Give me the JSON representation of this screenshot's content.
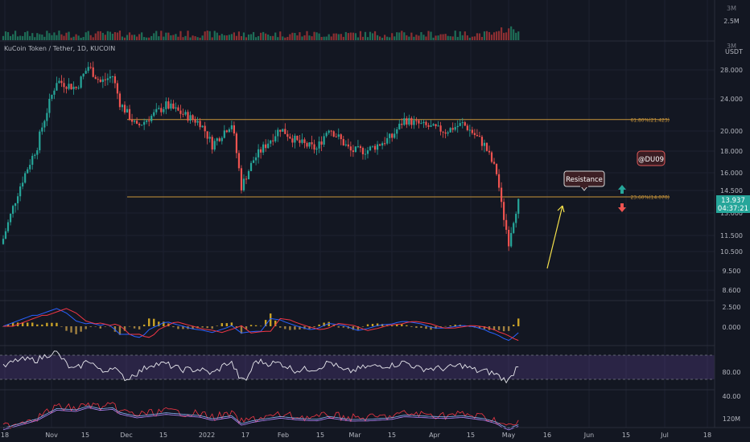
{
  "chart_data": {
    "type": "candlestick",
    "title": "KuCoin Token / Tether, 1D, KUCOIN",
    "currency": "USDT",
    "ylim": [
      8.6,
      30.0
    ],
    "y_ticks": [
      "28.000",
      "24.000",
      "20.000",
      "18.000",
      "16.000",
      "14.500",
      "13.000",
      "11.500",
      "10.500",
      "9.500",
      "8.600"
    ],
    "x_ticks": [
      "18",
      "Nov",
      "15",
      "Dec",
      "15",
      "2022",
      "17",
      "Feb",
      "15",
      "Mar",
      "15",
      "Apr",
      "15",
      "May",
      "16",
      "Jun",
      "15",
      "Jul",
      "18"
    ],
    "fib_levels": [
      {
        "label": "61.80%(21.423)",
        "value": 21.423
      },
      {
        "label": "23.60%(14.070)",
        "value": 14.07
      }
    ],
    "last_price": "13.937",
    "countdown": "04:37:21",
    "volume_ticks": [
      "3M",
      "2.5M"
    ],
    "volume_peak_text": "3M",
    "macd_ticks": [
      "2.500",
      "0.000"
    ],
    "rsi_ticks": [
      "80.00",
      "40.00"
    ],
    "bottom_ticks": [
      "120M"
    ],
    "annotations": {
      "resistance": "Resistance",
      "author": "@DU09"
    },
    "colors": {
      "up": "#26a69a",
      "down": "#ef5350",
      "fib": "#c9953a",
      "rsi_band": "#7e57c2",
      "arrow": "#f5e14b"
    },
    "ohlc_key_points": [
      {
        "date": "2021-10-16",
        "close": 11.3
      },
      {
        "date": "2021-10-30",
        "close": 18.5
      },
      {
        "date": "2021-11-07",
        "close": 26.5
      },
      {
        "date": "2021-11-15",
        "close": 25.5
      },
      {
        "date": "2021-11-20",
        "close": 28.5
      },
      {
        "date": "2021-11-25",
        "close": 26.3
      },
      {
        "date": "2021-11-30",
        "close": 27.2
      },
      {
        "date": "2021-12-03",
        "close": 23.5
      },
      {
        "date": "2021-12-10",
        "close": 20.5
      },
      {
        "date": "2021-12-22",
        "close": 23.2
      },
      {
        "date": "2022-01-05",
        "close": 21.0
      },
      {
        "date": "2022-01-10",
        "close": 18.6
      },
      {
        "date": "2022-01-18",
        "close": 20.9
      },
      {
        "date": "2022-01-22",
        "close": 14.8
      },
      {
        "date": "2022-01-27",
        "close": 17.2
      },
      {
        "date": "2022-02-07",
        "close": 20.3
      },
      {
        "date": "2022-02-14",
        "close": 18.9
      },
      {
        "date": "2022-02-22",
        "close": 18.2
      },
      {
        "date": "2022-02-27",
        "close": 20.4
      },
      {
        "date": "2022-03-08",
        "close": 18.0
      },
      {
        "date": "2022-03-15",
        "close": 18.1
      },
      {
        "date": "2022-03-25",
        "close": 19.4
      },
      {
        "date": "2022-03-30",
        "close": 21.4
      },
      {
        "date": "2022-04-08",
        "close": 20.6
      },
      {
        "date": "2022-04-16",
        "close": 20.0
      },
      {
        "date": "2022-04-23",
        "close": 20.9
      },
      {
        "date": "2022-05-02",
        "close": 18.6
      },
      {
        "date": "2022-05-07",
        "close": 16.0
      },
      {
        "date": "2022-05-09",
        "close": 13.5
      },
      {
        "date": "2022-05-12",
        "close": 11.1
      },
      {
        "date": "2022-05-14",
        "close": 12.6
      },
      {
        "date": "2022-05-16",
        "close": 13.937
      }
    ]
  }
}
